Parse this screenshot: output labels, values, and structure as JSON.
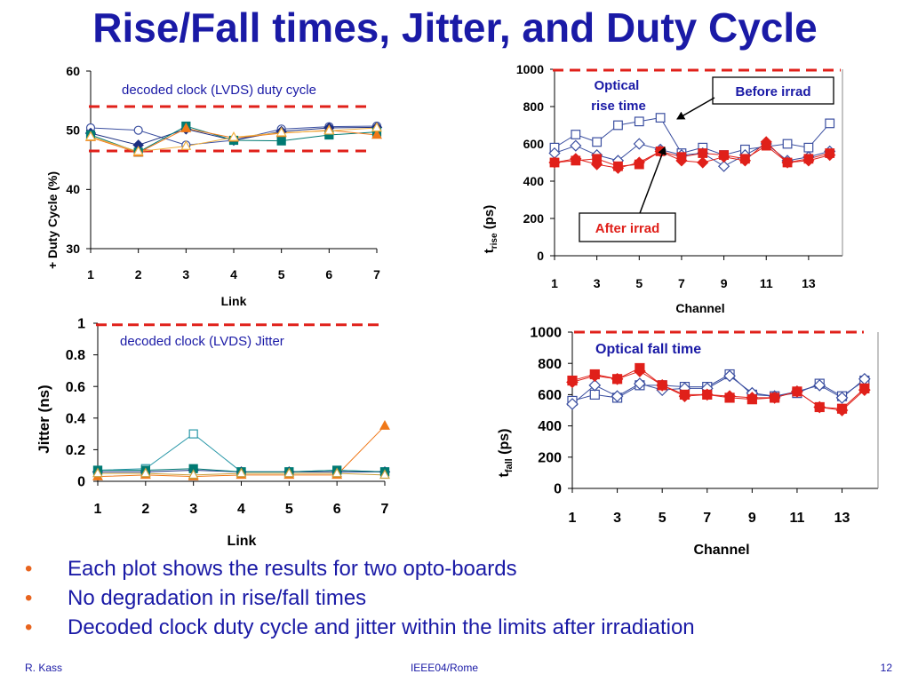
{
  "slide": {
    "title": "Rise/Fall times, Jitter, and Duty Cycle",
    "bullets": [
      "Each plot shows the results for two opto-boards",
      "No degradation in rise/fall times",
      "Decoded clock duty cycle and jitter within the limits after irradiation"
    ],
    "footer": {
      "left": "R. Kass",
      "center": "IEEE04/Rome",
      "right": "12"
    }
  },
  "colors": {
    "title": "#1a1aa6",
    "limit_line": "#e0201a",
    "bullet": "#e8641e"
  },
  "chart_data": [
    {
      "id": "duty",
      "type": "line",
      "ylabel": "+ Duty Cycle (%)",
      "xlabel": "Link",
      "annotation": "decoded clock (LVDS) duty cycle",
      "xlim": [
        1,
        7
      ],
      "ylim": [
        30,
        60
      ],
      "xticks": [
        1,
        2,
        3,
        4,
        5,
        6,
        7
      ],
      "yticks": [
        30,
        40,
        50,
        60
      ],
      "grid": false,
      "limit_lines": [
        54,
        46.5
      ],
      "x": [
        1,
        2,
        3,
        4,
        5,
        6,
        7
      ],
      "series": [
        {
          "color": "#3b4fa0",
          "marker": "open-circle",
          "values": [
            50.4,
            50.0,
            47.5,
            48.3,
            50.2,
            50.6,
            50.7
          ]
        },
        {
          "color": "#1a2e80",
          "marker": "diamond",
          "values": [
            49.5,
            47.5,
            50.2,
            48.3,
            49.8,
            50.4,
            50.5
          ]
        },
        {
          "color": "#007a73",
          "marker": "square",
          "values": [
            49.2,
            46.3,
            50.7,
            48.3,
            48.2,
            49.2,
            49.7
          ]
        },
        {
          "color": "#f07818",
          "marker": "triangle",
          "values": [
            48.8,
            46.2,
            50.3,
            48.7,
            49.5,
            50.0,
            49.2
          ]
        },
        {
          "color": "#f0b040",
          "marker": "open-triangle",
          "values": [
            48.9,
            46.4,
            47.3,
            48.8,
            49.6,
            49.9,
            50.4
          ]
        }
      ]
    },
    {
      "id": "jitter",
      "type": "line",
      "ylabel": "Jitter (ns)",
      "xlabel": "Link",
      "annotation": "decoded clock (LVDS) Jitter",
      "xlim": [
        1,
        7
      ],
      "ylim": [
        0,
        1
      ],
      "xticks": [
        1,
        2,
        3,
        4,
        5,
        6,
        7
      ],
      "yticks": [
        "0",
        "0.2",
        "0.4",
        "0.6",
        "0.8",
        "1"
      ],
      "grid": false,
      "limit_lines": [
        0.99
      ],
      "x": [
        1,
        2,
        3,
        4,
        5,
        6,
        7
      ],
      "series": [
        {
          "color": "#2a98a8",
          "marker": "open-square",
          "values": [
            0.07,
            0.08,
            0.3,
            0.06,
            0.06,
            0.07,
            0.06
          ]
        },
        {
          "color": "#1a2e80",
          "marker": "diamond",
          "values": [
            0.06,
            0.06,
            0.07,
            0.06,
            0.06,
            0.06,
            0.06
          ]
        },
        {
          "color": "#007a73",
          "marker": "square",
          "values": [
            0.07,
            0.07,
            0.08,
            0.06,
            0.06,
            0.07,
            0.06
          ]
        },
        {
          "color": "#f07818",
          "marker": "triangle",
          "values": [
            0.03,
            0.04,
            0.03,
            0.04,
            0.04,
            0.04,
            0.35
          ]
        },
        {
          "color": "#c8a040",
          "marker": "open-triangle",
          "values": [
            0.05,
            0.05,
            0.04,
            0.05,
            0.05,
            0.05,
            0.04
          ]
        }
      ]
    },
    {
      "id": "rise",
      "type": "line",
      "ylabel": "trise (ps)",
      "ylabel_main": "t",
      "ylabel_sub": "rise",
      "ylabel_unit": "(ps)",
      "xlabel": "Channel",
      "annotation": "Optical\nrise time",
      "annotation_lines": [
        "Optical",
        "rise time"
      ],
      "legend_before": "Before irrad",
      "legend_after": "After irrad",
      "xlim": [
        1,
        14
      ],
      "ylim": [
        0,
        1000
      ],
      "xticks": [
        1,
        3,
        5,
        7,
        9,
        11,
        13
      ],
      "yticks": [
        0,
        200,
        400,
        600,
        800,
        1000
      ],
      "grid": false,
      "limit_lines": [
        995
      ],
      "x": [
        1,
        2,
        3,
        4,
        5,
        6,
        7,
        8,
        9,
        10,
        11,
        12,
        13,
        14
      ],
      "series": [
        {
          "color": "#3b4fa0",
          "marker": "open-square",
          "values": [
            580,
            650,
            610,
            700,
            720,
            740,
            550,
            580,
            540,
            570,
            null,
            600,
            580,
            710
          ]
        },
        {
          "color": "#3b4fa0",
          "marker": "open-diamond",
          "values": [
            550,
            590,
            540,
            510,
            600,
            570,
            540,
            550,
            480,
            540,
            600,
            510,
            530,
            560
          ]
        },
        {
          "color": "#e0201a",
          "marker": "square",
          "values": [
            500,
            510,
            520,
            480,
            490,
            560,
            530,
            550,
            540,
            520,
            590,
            500,
            520,
            550
          ]
        },
        {
          "color": "#e0201a",
          "marker": "diamond",
          "values": [
            500,
            520,
            490,
            470,
            500,
            560,
            510,
            500,
            530,
            510,
            610,
            500,
            510,
            540
          ]
        }
      ]
    },
    {
      "id": "fall",
      "type": "line",
      "ylabel": "tfall (ps)",
      "ylabel_main": "t",
      "ylabel_sub": "fall",
      "ylabel_unit": "(ps)",
      "xlabel": "Channel",
      "annotation": "Optical fall time",
      "xlim": [
        1,
        14
      ],
      "ylim": [
        0,
        1000
      ],
      "xticks": [
        1,
        3,
        5,
        7,
        9,
        11,
        13
      ],
      "yticks": [
        0,
        200,
        400,
        600,
        800,
        1000
      ],
      "grid": false,
      "limit_lines": [
        1000
      ],
      "x": [
        1,
        2,
        3,
        4,
        5,
        6,
        7,
        8,
        9,
        10,
        11,
        12,
        13,
        14
      ],
      "series": [
        {
          "color": "#3b4fa0",
          "marker": "open-square",
          "values": [
            560,
            600,
            580,
            660,
            660,
            650,
            650,
            730,
            600,
            590,
            610,
            670,
            590,
            690
          ]
        },
        {
          "color": "#3b4fa0",
          "marker": "open-diamond",
          "values": [
            540,
            660,
            590,
            670,
            630,
            640,
            640,
            720,
            610,
            590,
            620,
            660,
            580,
            700
          ]
        },
        {
          "color": "#e0201a",
          "marker": "square",
          "values": [
            690,
            730,
            700,
            770,
            660,
            600,
            600,
            580,
            570,
            580,
            620,
            520,
            510,
            640
          ]
        },
        {
          "color": "#e0201a",
          "marker": "diamond",
          "values": [
            680,
            720,
            700,
            750,
            660,
            590,
            600,
            590,
            580,
            580,
            620,
            520,
            500,
            630
          ]
        }
      ]
    }
  ]
}
